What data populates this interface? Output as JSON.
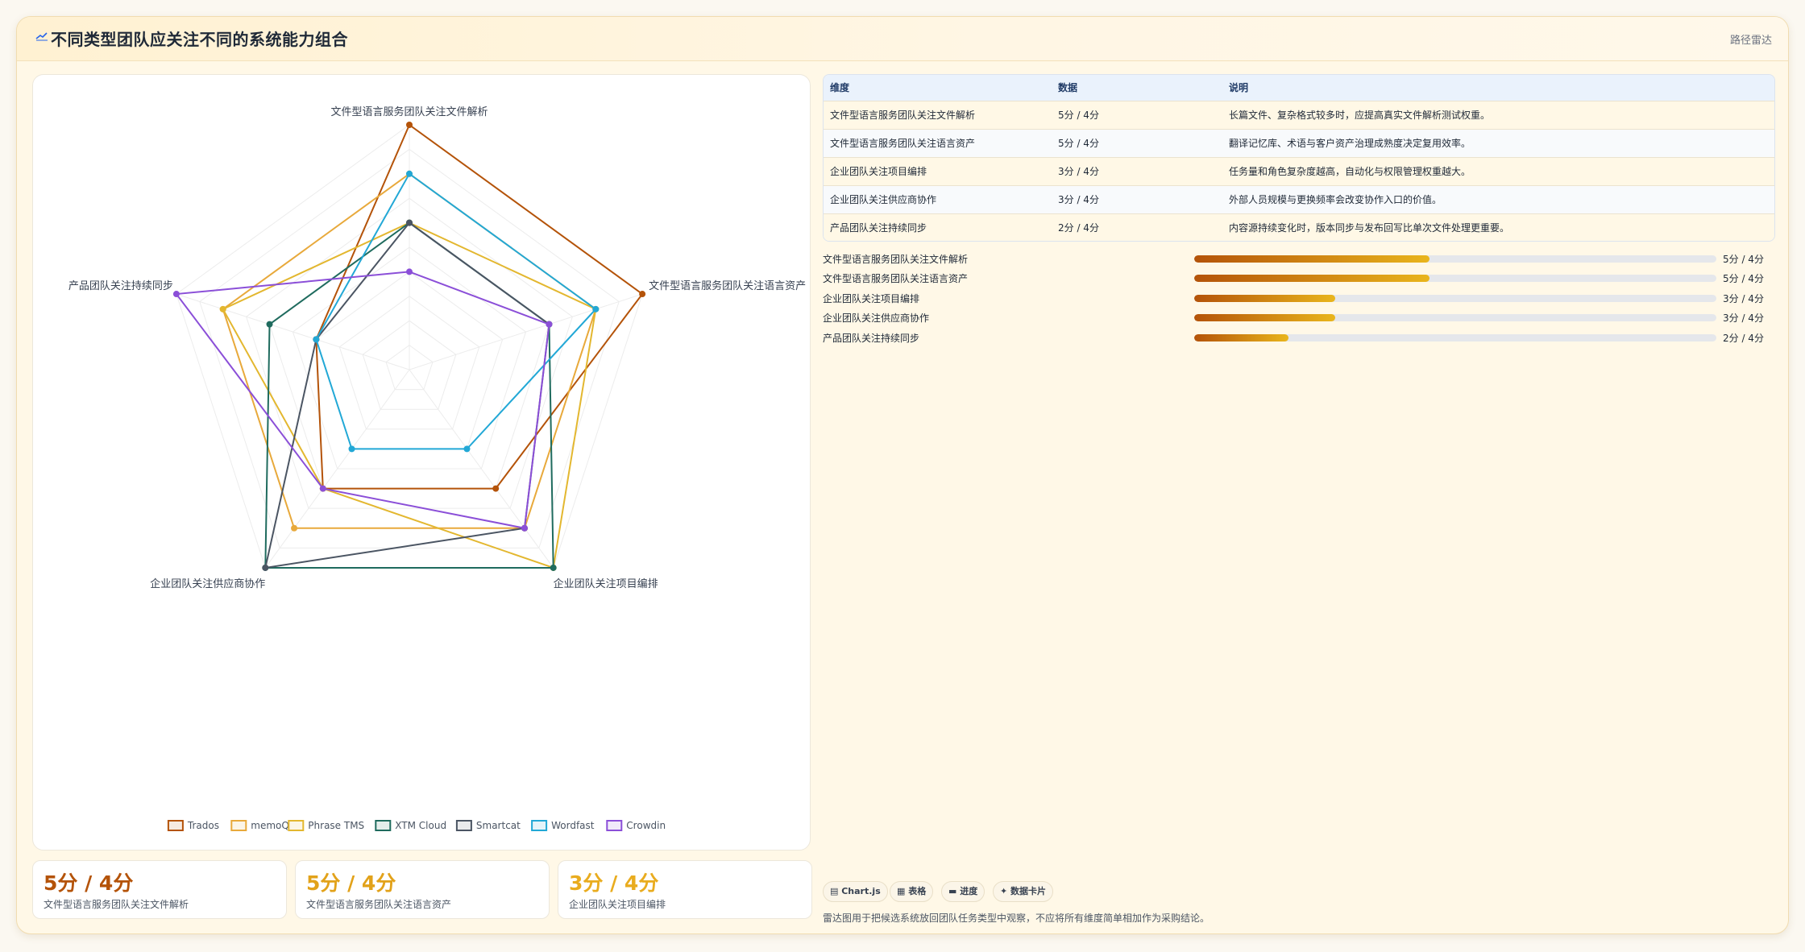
{
  "header": {
    "title": "不同类型团队应关注不同的系统能力组合",
    "right_label": "路径雷达"
  },
  "chart_data": {
    "type": "radar",
    "title": "",
    "axes": [
      "文件型语言服务团队关注文件解析",
      "文件型语言服务团队关注语言资产",
      "企业团队关注项目编排",
      "企业团队关注供应商协作",
      "产品团队关注持续同步"
    ],
    "rlim": [
      0,
      5
    ],
    "grid": true,
    "legend_position": "bottom",
    "series": [
      {
        "name": "Trados",
        "color": "#b45309",
        "values": [
          5,
          5,
          3,
          3,
          2
        ]
      },
      {
        "name": "memoQ",
        "color": "#e8a93b",
        "values": [
          4,
          4,
          4,
          4,
          4
        ]
      },
      {
        "name": "Phrase TMS",
        "color": "#e3b72f",
        "values": [
          3,
          4,
          5,
          3,
          4
        ]
      },
      {
        "name": "XTM Cloud",
        "color": "#1f6b5e",
        "values": [
          3,
          3,
          5,
          5,
          3
        ]
      },
      {
        "name": "Smartcat",
        "color": "#4b5563",
        "values": [
          3,
          3,
          4,
          5,
          2
        ]
      },
      {
        "name": "Wordfast",
        "color": "#22a8d6",
        "values": [
          4,
          4,
          2,
          2,
          2
        ]
      },
      {
        "name": "Crowdin",
        "color": "#8b4fd8",
        "values": [
          2,
          3,
          4,
          3,
          5
        ]
      }
    ]
  },
  "stats": [
    {
      "value": "5分 / 4分",
      "label": "文件型语言服务团队关注文件解析",
      "color": "#b45309"
    },
    {
      "value": "5分 / 4分",
      "label": "文件型语言服务团队关注语言资产",
      "color": "#e2a21a"
    },
    {
      "value": "3分 / 4分",
      "label": "企业团队关注项目编排",
      "color": "#e9ac1f"
    }
  ],
  "table": {
    "headers": [
      "维度",
      "数据",
      "说明"
    ],
    "rows": [
      {
        "dim": "文件型语言服务团队关注文件解析",
        "data": "5分 / 4分",
        "note": "长篇文件、复杂格式较多时，应提高真实文件解析测试权重。"
      },
      {
        "dim": "文件型语言服务团队关注语言资产",
        "data": "5分 / 4分",
        "note": "翻译记忆库、术语与客户资产治理成熟度决定复用效率。"
      },
      {
        "dim": "企业团队关注项目编排",
        "data": "3分 / 4分",
        "note": "任务量和角色复杂度越高，自动化与权限管理权重越大。"
      },
      {
        "dim": "企业团队关注供应商协作",
        "data": "3分 / 4分",
        "note": "外部人员规模与更换频率会改变协作入口的价值。"
      },
      {
        "dim": "产品团队关注持续同步",
        "data": "2分 / 4分",
        "note": "内容源持续变化时，版本同步与发布回写比单次文件处理更重要。"
      }
    ]
  },
  "progress": [
    {
      "label": "文件型语言服务团队关注文件解析",
      "value": "5分 / 4分",
      "fraction": 0.45
    },
    {
      "label": "文件型语言服务团队关注语言资产",
      "value": "5分 / 4分",
      "fraction": 0.45
    },
    {
      "label": "企业团队关注项目编排",
      "value": "3分 / 4分",
      "fraction": 0.27
    },
    {
      "label": "企业团队关注供应商协作",
      "value": "3分 / 4分",
      "fraction": 0.27
    },
    {
      "label": "产品团队关注持续同步",
      "value": "2分 / 4分",
      "fraction": 0.18
    }
  ],
  "tags": [
    {
      "label": "Chart.js",
      "icon": "chart-icon"
    },
    {
      "label": "表格",
      "icon": "table-icon"
    },
    {
      "label": "进度",
      "icon": "progress-icon"
    },
    {
      "label": "数据卡片",
      "icon": "card-icon"
    }
  ],
  "footnote": "雷达图用于把候选系统放回团队任务类型中观察，不应将所有维度简单相加作为采购结论。"
}
